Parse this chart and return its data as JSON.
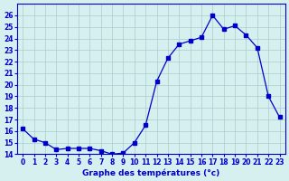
{
  "hours": [
    0,
    1,
    2,
    3,
    4,
    5,
    6,
    7,
    8,
    9,
    10,
    11,
    12,
    13,
    14,
    15,
    16,
    17,
    18,
    19,
    20,
    21,
    22,
    23
  ],
  "temperatures": [
    16.2,
    15.3,
    15.0,
    14.4,
    14.5,
    14.5,
    14.5,
    14.3,
    14.0,
    14.1,
    15.0,
    16.5,
    20.3,
    22.3,
    23.5,
    23.8,
    24.1,
    26.0,
    24.8,
    25.1,
    24.3,
    23.2,
    19.0,
    17.2
  ],
  "line_color": "#0000cc",
  "marker_color": "#0000cc",
  "bg_color": "#d6f0f0",
  "grid_color": "#aacccc",
  "xlabel": "Graphe des températures (°c)",
  "xlabel_color": "#0000cc",
  "tick_color": "#0000cc",
  "ylim": [
    14,
    27
  ],
  "yticks": [
    14,
    15,
    16,
    17,
    18,
    19,
    20,
    21,
    22,
    23,
    24,
    25,
    26
  ],
  "xticks": [
    0,
    1,
    2,
    3,
    4,
    5,
    6,
    7,
    8,
    9,
    10,
    11,
    12,
    13,
    14,
    15,
    16,
    17,
    18,
    19,
    20,
    21,
    22,
    23
  ]
}
